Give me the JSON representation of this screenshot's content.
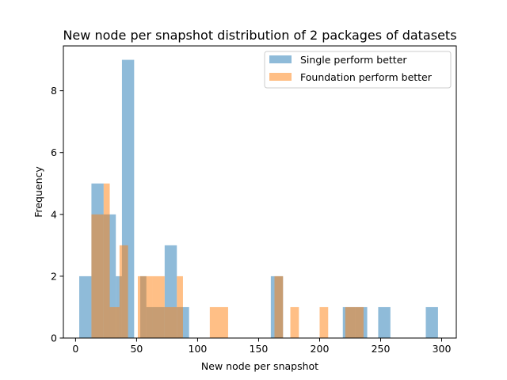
{
  "chart_data": {
    "type": "bar",
    "subtype": "overlaid-histogram",
    "title": "New node per snapshot distribution of 2 packages of datasets",
    "xlabel": "New node per snapshot",
    "ylabel": "Frequency",
    "xlim": [
      -10,
      312
    ],
    "ylim": [
      0,
      9.45
    ],
    "xticks": [
      0,
      50,
      100,
      150,
      200,
      250,
      300
    ],
    "yticks": [
      0,
      2,
      4,
      6,
      8
    ],
    "legend_position": "upper right",
    "series": [
      {
        "name": "Single perform better",
        "color": "#1f77b4",
        "bins": [
          {
            "x0": 3,
            "x1": 13,
            "count": 2
          },
          {
            "x0": 13,
            "x1": 23,
            "count": 5
          },
          {
            "x0": 23,
            "x1": 33,
            "count": 4
          },
          {
            "x0": 33,
            "x1": 38,
            "count": 2
          },
          {
            "x0": 38,
            "x1": 48,
            "count": 9
          },
          {
            "x0": 53,
            "x1": 58,
            "count": 2
          },
          {
            "x0": 58,
            "x1": 63,
            "count": 1
          },
          {
            "x0": 63,
            "x1": 73,
            "count": 1
          },
          {
            "x0": 73,
            "x1": 83,
            "count": 3
          },
          {
            "x0": 83,
            "x1": 93,
            "count": 1
          },
          {
            "x0": 160,
            "x1": 170,
            "count": 2
          },
          {
            "x0": 219,
            "x1": 229,
            "count": 1
          },
          {
            "x0": 229,
            "x1": 239,
            "count": 1
          },
          {
            "x0": 248,
            "x1": 258,
            "count": 1
          },
          {
            "x0": 287,
            "x1": 297,
            "count": 1
          }
        ]
      },
      {
        "name": "Foundation perform better",
        "color": "#ff7f0e",
        "bins": [
          {
            "x0": 13,
            "x1": 23,
            "count": 4
          },
          {
            "x0": 23,
            "x1": 28,
            "count": 5
          },
          {
            "x0": 28,
            "x1": 36,
            "count": 1
          },
          {
            "x0": 36,
            "x1": 43,
            "count": 3
          },
          {
            "x0": 51,
            "x1": 63,
            "count": 2
          },
          {
            "x0": 63,
            "x1": 73,
            "count": 2
          },
          {
            "x0": 73,
            "x1": 83,
            "count": 1
          },
          {
            "x0": 83,
            "x1": 88,
            "count": 2
          },
          {
            "x0": 110,
            "x1": 125,
            "count": 1
          },
          {
            "x0": 163,
            "x1": 170,
            "count": 2
          },
          {
            "x0": 176,
            "x1": 183,
            "count": 1
          },
          {
            "x0": 200,
            "x1": 207,
            "count": 1
          },
          {
            "x0": 221,
            "x1": 236,
            "count": 1
          }
        ]
      }
    ]
  }
}
